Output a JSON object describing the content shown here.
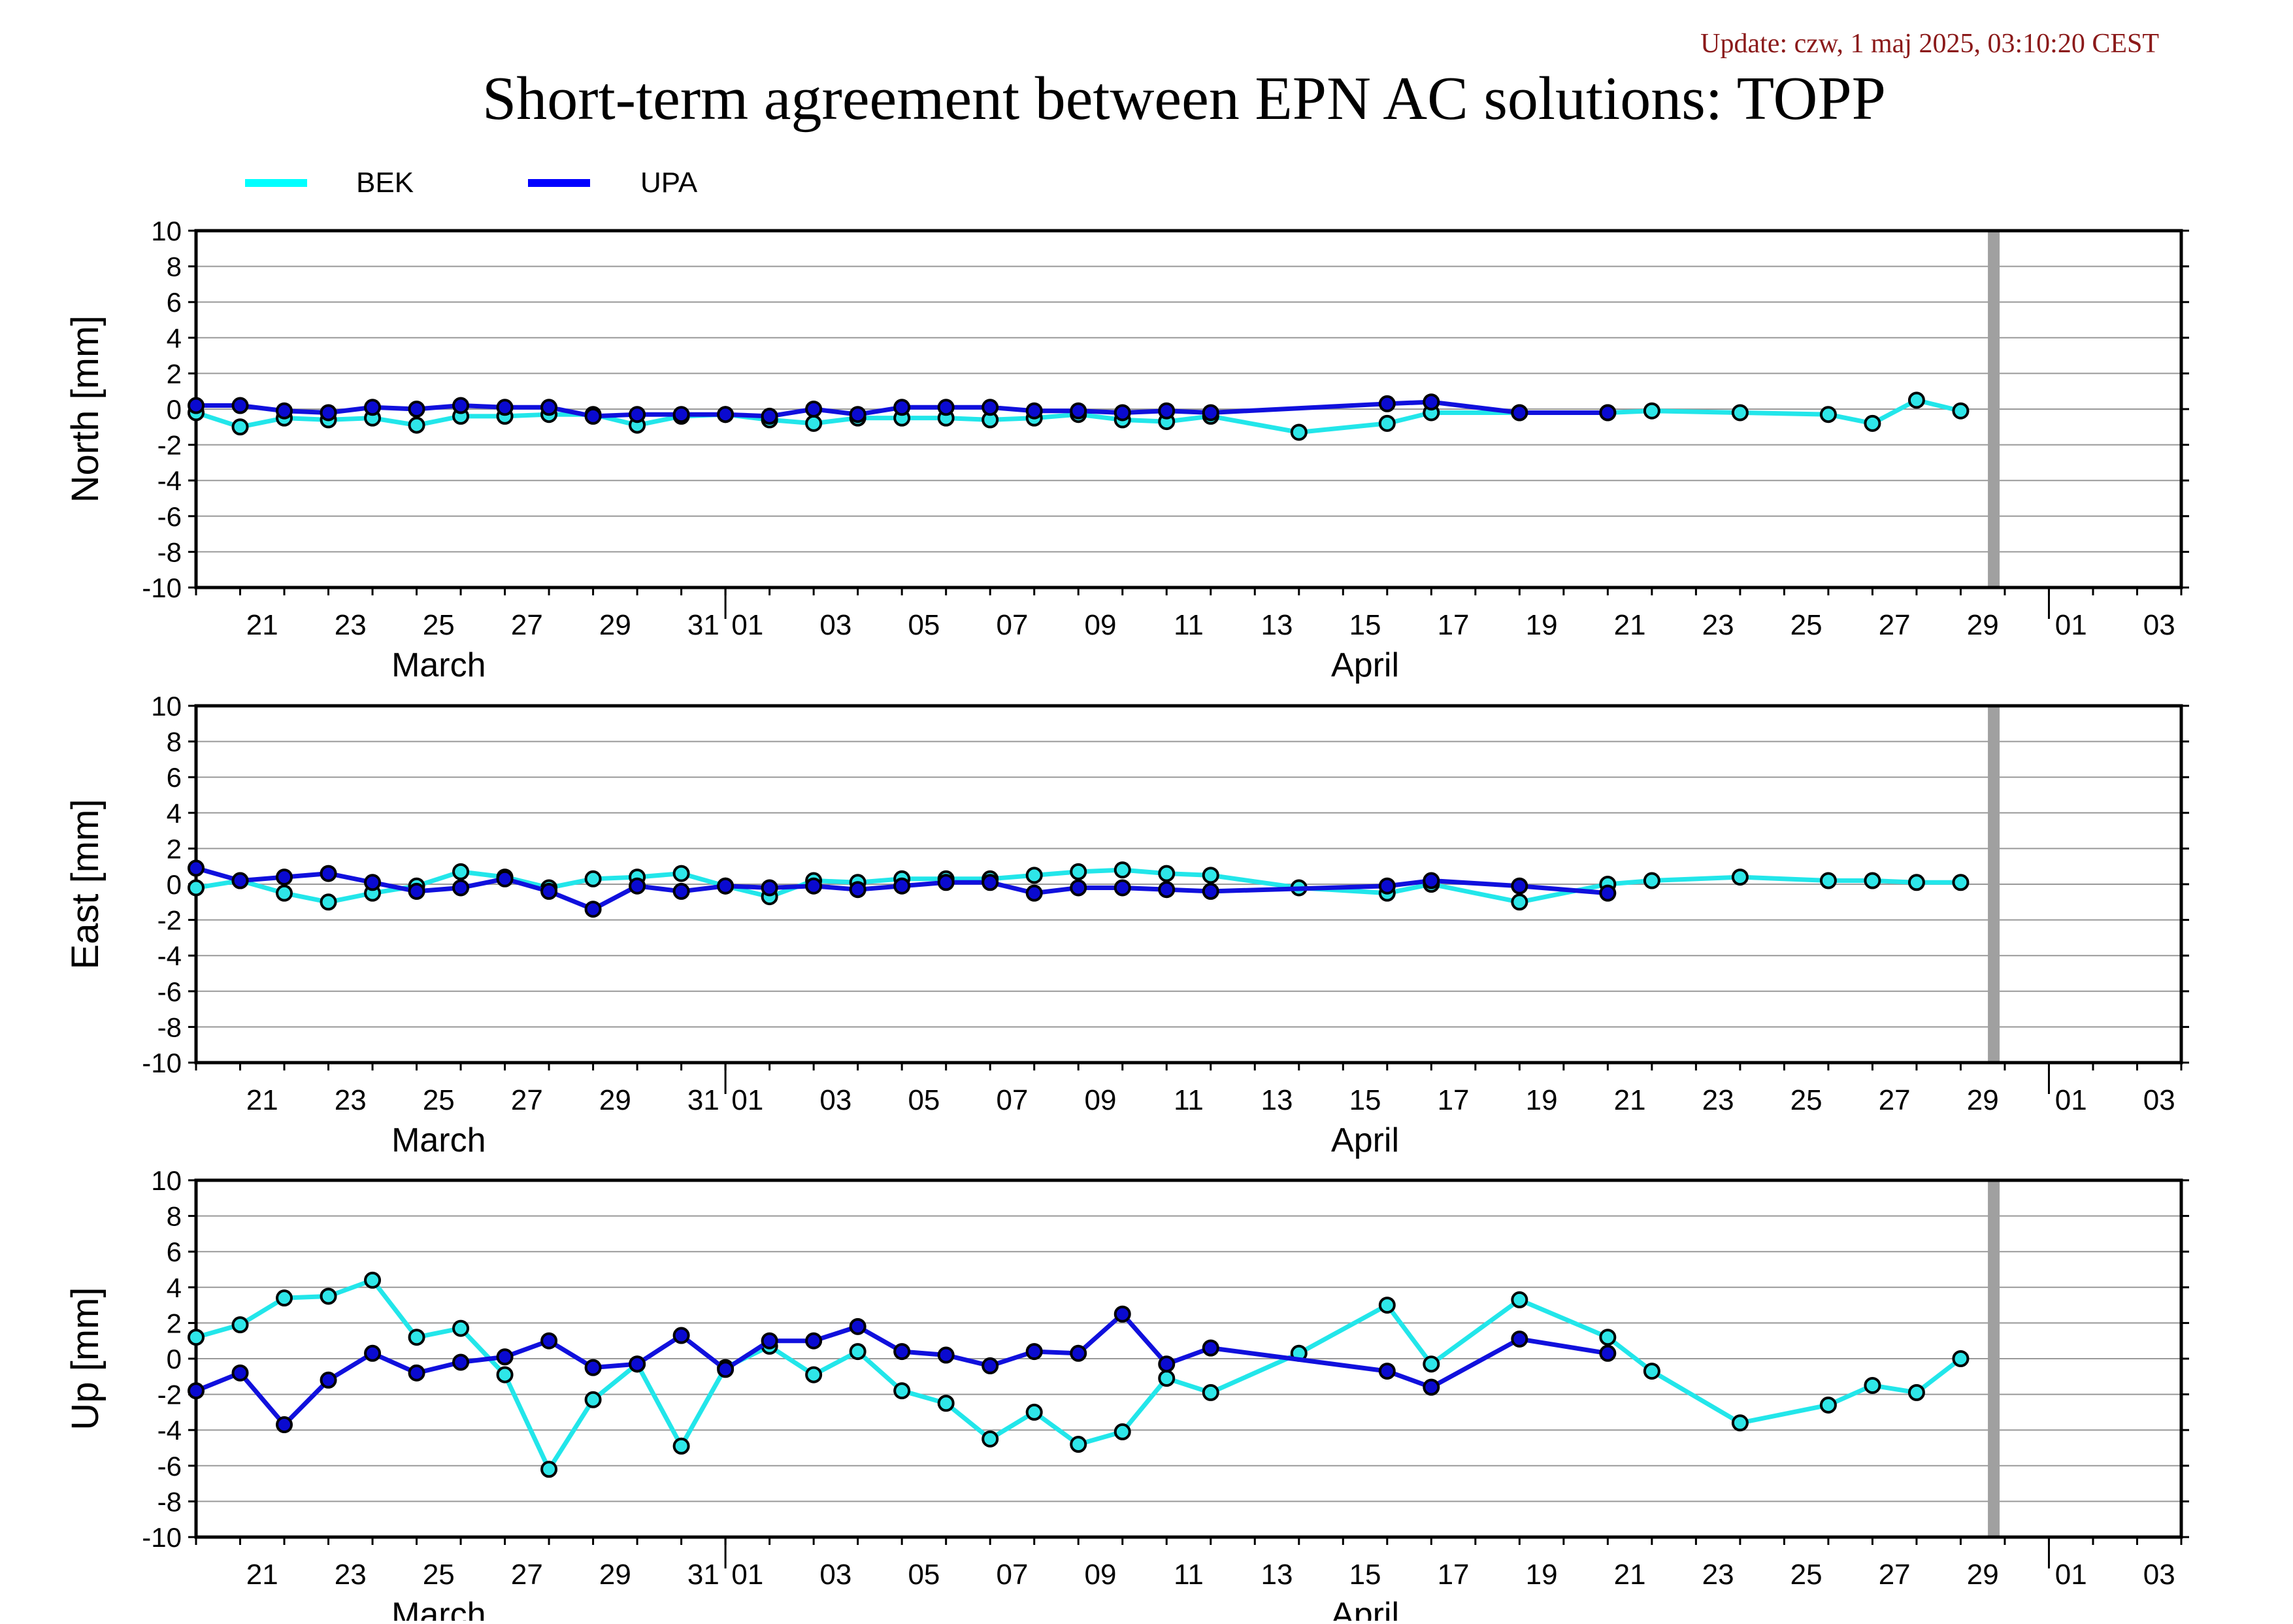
{
  "header": {
    "update_text": "Update: czw, 1 maj 2025, 03:10:20 CEST",
    "title": "Short-term agreement between EPN AC solutions: TOPP"
  },
  "legend": [
    {
      "name": "BEK",
      "color": "#00ffff"
    },
    {
      "name": "UPA",
      "color": "#0000ff"
    }
  ],
  "colors": {
    "bek_line": "#22e6ea",
    "upa_line": "#1010dd",
    "marker_outline": "#000000",
    "grid": "#999999",
    "marker_band": "#a0a0a0",
    "update_text": "#8b1a1a"
  },
  "chart_data": {
    "type": "line",
    "x_unit": "day",
    "x_start": "2025-03-20",
    "x_end": "2025-05-04",
    "marker_date": "2025-04-29T18:00",
    "month_labels": [
      {
        "label": "March",
        "date": "2025-03-25"
      },
      {
        "label": "April",
        "date": "2025-04-15"
      }
    ],
    "tick_labels": [
      "21",
      "23",
      "25",
      "27",
      "29",
      "31",
      "01",
      "03",
      "05",
      "07",
      "09",
      "11",
      "13",
      "15",
      "17",
      "19",
      "21",
      "23",
      "25",
      "27",
      "29",
      "01",
      "03"
    ],
    "panels": [
      {
        "ylabel": "North [mm]",
        "ylim": [
          -10,
          10
        ],
        "yticks": [
          10,
          8,
          6,
          4,
          2,
          0,
          -2,
          -4,
          -6,
          -8,
          -10
        ],
        "series": [
          {
            "name": "BEK",
            "x": [
              "2025-03-20",
              "2025-03-21",
              "2025-03-22",
              "2025-03-23",
              "2025-03-24",
              "2025-03-25",
              "2025-03-26",
              "2025-03-27",
              "2025-03-28",
              "2025-03-29",
              "2025-03-30",
              "2025-03-31",
              "2025-04-01",
              "2025-04-02",
              "2025-04-03",
              "2025-04-04",
              "2025-04-05",
              "2025-04-06",
              "2025-04-07",
              "2025-04-08",
              "2025-04-09",
              "2025-04-10",
              "2025-04-11",
              "2025-04-12",
              "2025-04-14",
              "2025-04-16",
              "2025-04-17",
              "2025-04-19",
              "2025-04-21",
              "2025-04-22",
              "2025-04-24",
              "2025-04-26",
              "2025-04-27",
              "2025-04-28",
              "2025-04-29"
            ],
            "y": [
              -0.2,
              -1.0,
              -0.5,
              -0.6,
              -0.5,
              -0.9,
              -0.4,
              -0.4,
              -0.3,
              -0.3,
              -0.9,
              -0.4,
              -0.3,
              -0.6,
              -0.8,
              -0.5,
              -0.5,
              -0.5,
              -0.6,
              -0.5,
              -0.3,
              -0.6,
              -0.7,
              -0.4,
              -1.3,
              -0.8,
              -0.2,
              -0.2,
              -0.2,
              -0.1,
              -0.2,
              -0.3,
              -0.8,
              0.5,
              -0.1
            ]
          },
          {
            "name": "UPA",
            "x": [
              "2025-03-20",
              "2025-03-21",
              "2025-03-22",
              "2025-03-23",
              "2025-03-24",
              "2025-03-25",
              "2025-03-26",
              "2025-03-27",
              "2025-03-28",
              "2025-03-29",
              "2025-03-30",
              "2025-03-31",
              "2025-04-01",
              "2025-04-02",
              "2025-04-03",
              "2025-04-04",
              "2025-04-05",
              "2025-04-06",
              "2025-04-07",
              "2025-04-08",
              "2025-04-09",
              "2025-04-10",
              "2025-04-11",
              "2025-04-12",
              "2025-04-16",
              "2025-04-17",
              "2025-04-19",
              "2025-04-21"
            ],
            "y": [
              0.2,
              0.2,
              -0.1,
              -0.2,
              0.1,
              0.0,
              0.2,
              0.1,
              0.1,
              -0.4,
              -0.3,
              -0.3,
              -0.3,
              -0.4,
              0.0,
              -0.3,
              0.1,
              0.1,
              0.1,
              -0.1,
              -0.1,
              -0.2,
              -0.1,
              -0.2,
              0.3,
              0.4,
              -0.2,
              -0.2
            ]
          }
        ]
      },
      {
        "ylabel": "East [mm]",
        "ylim": [
          -10,
          10
        ],
        "yticks": [
          10,
          8,
          6,
          4,
          2,
          0,
          -2,
          -4,
          -6,
          -8,
          -10
        ],
        "series": [
          {
            "name": "BEK",
            "x": [
              "2025-03-20",
              "2025-03-21",
              "2025-03-22",
              "2025-03-23",
              "2025-03-24",
              "2025-03-25",
              "2025-03-26",
              "2025-03-27",
              "2025-03-28",
              "2025-03-29",
              "2025-03-30",
              "2025-03-31",
              "2025-04-01",
              "2025-04-02",
              "2025-04-03",
              "2025-04-04",
              "2025-04-05",
              "2025-04-06",
              "2025-04-07",
              "2025-04-08",
              "2025-04-09",
              "2025-04-10",
              "2025-04-11",
              "2025-04-12",
              "2025-04-14",
              "2025-04-16",
              "2025-04-17",
              "2025-04-19",
              "2025-04-21",
              "2025-04-22",
              "2025-04-24",
              "2025-04-26",
              "2025-04-27",
              "2025-04-28",
              "2025-04-29"
            ],
            "y": [
              -0.2,
              0.2,
              -0.5,
              -1.0,
              -0.5,
              -0.1,
              0.7,
              0.4,
              -0.2,
              0.3,
              0.4,
              0.6,
              -0.1,
              -0.7,
              0.2,
              0.1,
              0.3,
              0.3,
              0.3,
              0.5,
              0.7,
              0.8,
              0.6,
              0.5,
              -0.2,
              -0.5,
              0.0,
              -1.0,
              0.0,
              0.2,
              0.4,
              0.2,
              0.2,
              0.1,
              0.1
            ]
          },
          {
            "name": "UPA",
            "x": [
              "2025-03-20",
              "2025-03-21",
              "2025-03-22",
              "2025-03-23",
              "2025-03-24",
              "2025-03-25",
              "2025-03-26",
              "2025-03-27",
              "2025-03-28",
              "2025-03-29",
              "2025-03-30",
              "2025-03-31",
              "2025-04-01",
              "2025-04-02",
              "2025-04-03",
              "2025-04-04",
              "2025-04-05",
              "2025-04-06",
              "2025-04-07",
              "2025-04-08",
              "2025-04-09",
              "2025-04-10",
              "2025-04-11",
              "2025-04-12",
              "2025-04-16",
              "2025-04-17",
              "2025-04-19",
              "2025-04-21"
            ],
            "y": [
              0.9,
              0.2,
              0.4,
              0.6,
              0.1,
              -0.4,
              -0.2,
              0.3,
              -0.4,
              -1.4,
              -0.1,
              -0.4,
              -0.1,
              -0.2,
              -0.1,
              -0.3,
              -0.1,
              0.1,
              0.1,
              -0.5,
              -0.2,
              -0.2,
              -0.3,
              -0.4,
              -0.1,
              0.2,
              -0.1,
              -0.5
            ]
          }
        ]
      },
      {
        "ylabel": "Up [mm]",
        "ylim": [
          -10,
          10
        ],
        "yticks": [
          10,
          8,
          6,
          4,
          2,
          0,
          -2,
          -4,
          -6,
          -8,
          -10
        ],
        "series": [
          {
            "name": "BEK",
            "x": [
              "2025-03-20",
              "2025-03-21",
              "2025-03-22",
              "2025-03-23",
              "2025-03-24",
              "2025-03-25",
              "2025-03-26",
              "2025-03-27",
              "2025-03-28",
              "2025-03-29",
              "2025-03-30",
              "2025-03-31",
              "2025-04-01",
              "2025-04-02",
              "2025-04-03",
              "2025-04-04",
              "2025-04-05",
              "2025-04-06",
              "2025-04-07",
              "2025-04-08",
              "2025-04-09",
              "2025-04-10",
              "2025-04-11",
              "2025-04-12",
              "2025-04-14",
              "2025-04-16",
              "2025-04-17",
              "2025-04-19",
              "2025-04-21",
              "2025-04-22",
              "2025-04-24",
              "2025-04-26",
              "2025-04-27",
              "2025-04-28",
              "2025-04-29"
            ],
            "y": [
              1.2,
              1.9,
              3.4,
              3.5,
              4.4,
              1.2,
              1.7,
              -0.9,
              -6.2,
              -2.3,
              -0.3,
              -4.9,
              -0.5,
              0.7,
              -0.9,
              0.4,
              -1.8,
              -2.5,
              -4.5,
              -3.0,
              -4.8,
              -4.1,
              -1.1,
              -1.9,
              0.3,
              3.0,
              -0.3,
              3.3,
              1.2,
              -0.7,
              -3.6,
              -2.6,
              -1.5,
              -1.9,
              0.0
            ]
          },
          {
            "name": "UPA",
            "x": [
              "2025-03-20",
              "2025-03-21",
              "2025-03-22",
              "2025-03-23",
              "2025-03-24",
              "2025-03-25",
              "2025-03-26",
              "2025-03-27",
              "2025-03-28",
              "2025-03-29",
              "2025-03-30",
              "2025-03-31",
              "2025-04-01",
              "2025-04-02",
              "2025-04-03",
              "2025-04-04",
              "2025-04-05",
              "2025-04-06",
              "2025-04-07",
              "2025-04-08",
              "2025-04-09",
              "2025-04-10",
              "2025-04-11",
              "2025-04-12",
              "2025-04-16",
              "2025-04-17",
              "2025-04-19",
              "2025-04-21"
            ],
            "y": [
              -1.8,
              -0.8,
              -3.7,
              -1.2,
              0.3,
              -0.8,
              -0.2,
              0.1,
              1.0,
              -0.5,
              -0.3,
              1.3,
              -0.6,
              1.0,
              1.0,
              1.8,
              0.4,
              0.2,
              -0.4,
              0.4,
              0.3,
              2.5,
              -0.3,
              0.6,
              -0.7,
              -1.6,
              1.1,
              0.3
            ]
          }
        ]
      }
    ]
  }
}
